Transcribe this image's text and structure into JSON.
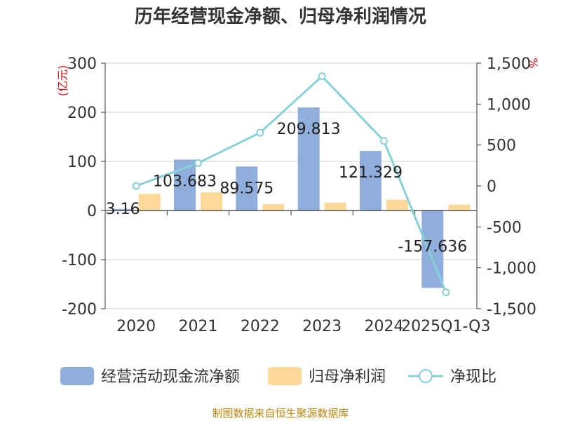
{
  "chart_data": {
    "type": "bar",
    "title": "历年经营现金净额、归母净利润情况",
    "categories": [
      "2020",
      "2021",
      "2022",
      "2023",
      "2024",
      "2025Q1-Q3"
    ],
    "left_axis": {
      "unit": "(亿元)",
      "ylim": [
        -200,
        300
      ],
      "ticks": [
        300,
        200,
        100,
        0,
        -100,
        -200
      ],
      "tick_labels": [
        "300",
        "200",
        "100",
        "0",
        "-100",
        "-200"
      ]
    },
    "right_axis": {
      "unit": "%",
      "ylim": [
        -1500,
        1500
      ],
      "ticks": [
        1500,
        1000,
        500,
        0,
        -500,
        -1000,
        -1500
      ],
      "tick_labels": [
        "1,500",
        "1,000",
        "500",
        "0",
        "-500",
        "-1,000",
        "-1,500"
      ]
    },
    "series": [
      {
        "name": "经营活动现金流净额",
        "type": "bar",
        "axis": "left",
        "color": "#8faedb",
        "values": [
          3.16,
          103.683,
          89.575,
          209.813,
          121.329,
          -157.636
        ],
        "labels": [
          "3.16",
          "103.683",
          "89.575",
          "209.813",
          "121.329",
          "-157.636"
        ]
      },
      {
        "name": "归母净利润",
        "type": "bar",
        "axis": "left",
        "color": "#fcd899",
        "values": [
          34,
          37,
          13,
          16,
          22,
          12
        ]
      },
      {
        "name": "净现比",
        "type": "line",
        "axis": "right",
        "color": "#88d0d5",
        "values": [
          0,
          280,
          650,
          1340,
          550,
          -1300
        ]
      }
    ],
    "source": "制图数据来自恒生聚源数据库"
  }
}
